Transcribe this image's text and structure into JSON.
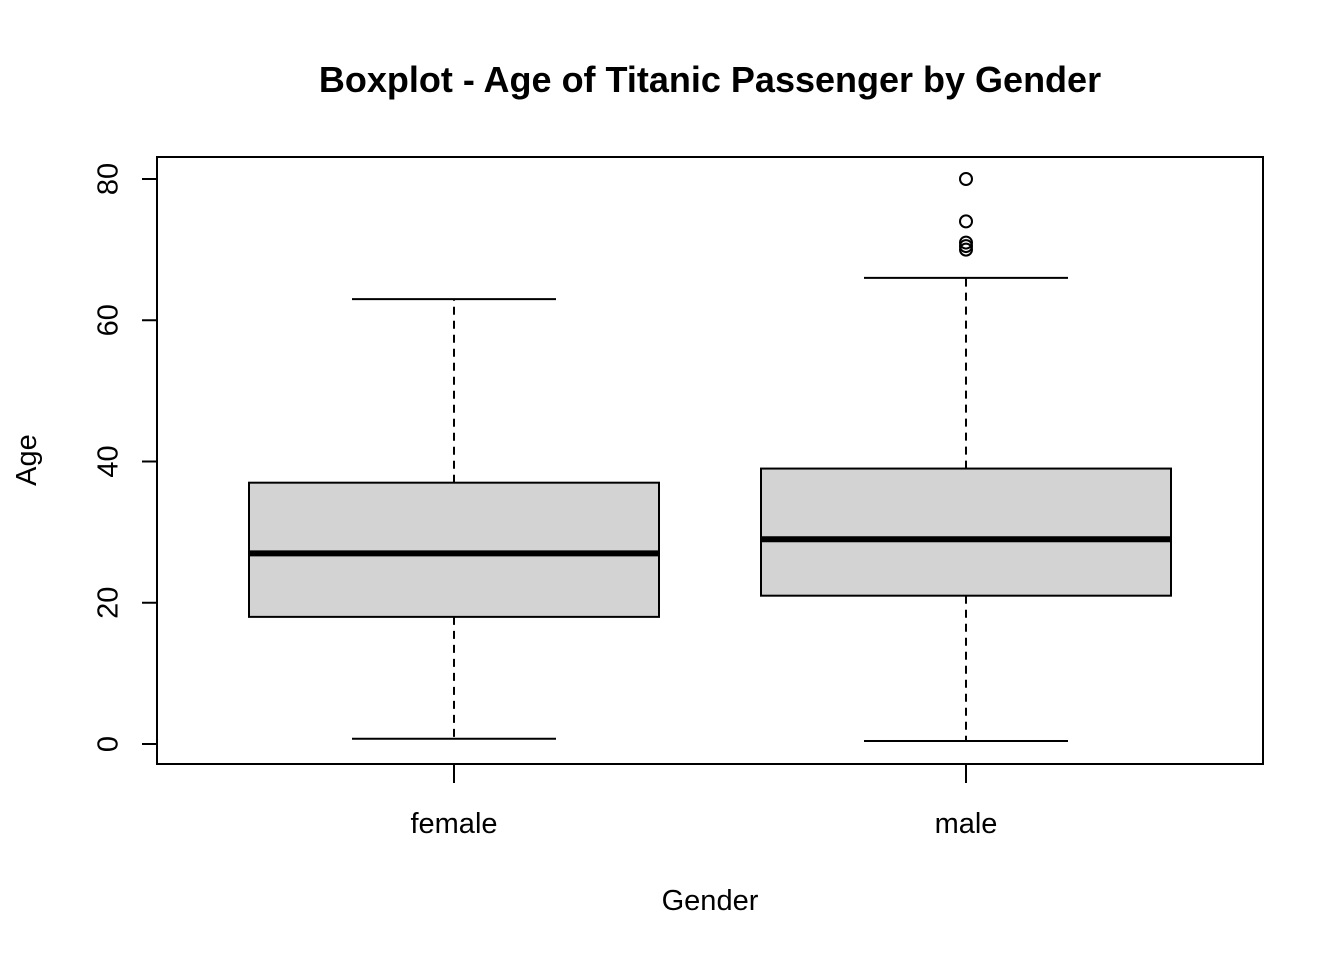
{
  "chart_data": {
    "type": "boxplot",
    "title": "Boxplot - Age of Titanic Passenger by Gender",
    "xlabel": "Gender",
    "ylabel": "Age",
    "ylim": [
      0,
      80
    ],
    "yticks": [
      "0",
      "20",
      "40",
      "60",
      "80"
    ],
    "categories": [
      "female",
      "male"
    ],
    "boxes": [
      {
        "category": "female",
        "whisker_low": 0.75,
        "q1": 18,
        "median": 27,
        "q3": 37,
        "whisker_high": 63,
        "outliers": []
      },
      {
        "category": "male",
        "whisker_low": 0.42,
        "q1": 21,
        "median": 29,
        "q3": 39,
        "whisker_high": 66,
        "outliers": [
          70,
          70.5,
          71,
          74,
          80
        ]
      }
    ],
    "grid": false,
    "legend": "none",
    "colors": {
      "box_fill": "#d3d3d3",
      "stroke": "#000000"
    }
  }
}
